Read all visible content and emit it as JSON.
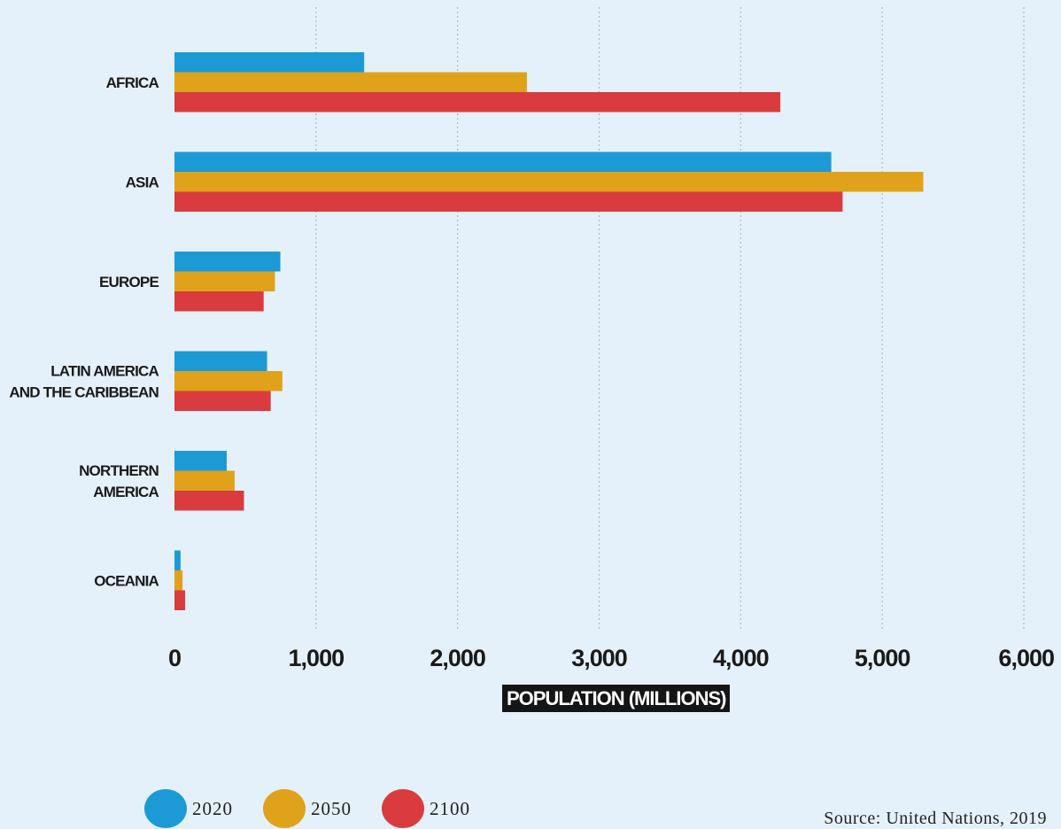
{
  "chart_data": {
    "type": "bar",
    "orientation": "horizontal",
    "categories": [
      [
        "AFRICA"
      ],
      [
        "ASIA"
      ],
      [
        "EUROPE"
      ],
      [
        "LATIN AMERICA",
        "AND THE CARIBBEAN"
      ],
      [
        "NORTHERN",
        "AMERICA"
      ],
      [
        "OCEANIA"
      ]
    ],
    "series": [
      {
        "name": "2020",
        "color": "#1c9ad6",
        "values": [
          1340,
          4640,
          748,
          654,
          369,
          43
        ]
      },
      {
        "name": "2050",
        "color": "#e0a21a",
        "values": [
          2490,
          5290,
          710,
          762,
          425,
          57
        ]
      },
      {
        "name": "2100",
        "color": "#d93b3f",
        "values": [
          4280,
          4720,
          630,
          680,
          491,
          75
        ]
      }
    ],
    "xlabel": "POPULATION (MILLIONS)",
    "xlim": [
      0,
      6000
    ],
    "xticks": [
      0,
      1000,
      2000,
      3000,
      4000,
      5000,
      6000
    ],
    "xtick_labels": [
      "0",
      "1,000",
      "2,000",
      "3,000",
      "4,000",
      "5,000",
      "6,000"
    ],
    "grid": "vertical dotted",
    "legend_placement": "bottom-left"
  },
  "source": "Source: United Nations, 2019"
}
